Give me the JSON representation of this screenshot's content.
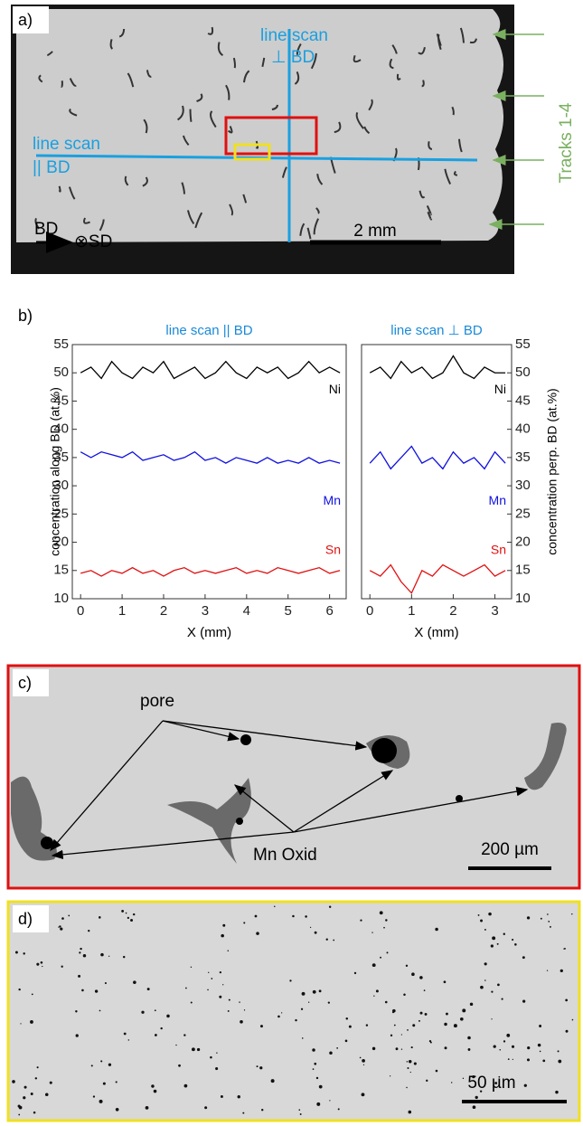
{
  "panels": {
    "a": {
      "label": "a)",
      "scan_perp": [
        "line scan",
        "⊥ BD"
      ],
      "scan_par": [
        "line scan",
        "|| BD"
      ],
      "scale_bar": "2 mm",
      "bd": "BD",
      "sd": "⊗SD",
      "tracks": "Tracks 1-4"
    },
    "b": {
      "label": "b)"
    },
    "c": {
      "label": "c)",
      "pore": "pore",
      "oxide": "Mn Oxid",
      "scale_bar": "200 µm"
    },
    "d": {
      "label": "d)",
      "scale_bar": "50 µm"
    }
  },
  "chart_data": [
    {
      "type": "line",
      "title": "line scan || BD",
      "x_label": "X (mm)",
      "y_label": "concentration along BD (at.%)",
      "xlim": [
        -0.2,
        6.4
      ],
      "xticks": [
        0,
        1,
        2,
        3,
        4,
        5,
        6
      ],
      "ylim": [
        10,
        55
      ],
      "yticks": [
        10,
        15,
        20,
        25,
        30,
        35,
        40,
        45,
        50,
        55
      ],
      "x": [
        0,
        0.25,
        0.5,
        0.75,
        1,
        1.25,
        1.5,
        1.75,
        2,
        2.25,
        2.5,
        2.75,
        3,
        3.25,
        3.5,
        3.75,
        4,
        4.25,
        4.5,
        4.75,
        5,
        5.25,
        5.5,
        5.75,
        6,
        6.25
      ],
      "series": [
        {
          "name": "Ni",
          "color": "#000000",
          "values": [
            50,
            51,
            49,
            52,
            50,
            49,
            51,
            50,
            52,
            49,
            50,
            51,
            49,
            50,
            52,
            50,
            49,
            51,
            50,
            51,
            49,
            50,
            52,
            50,
            51,
            50
          ]
        },
        {
          "name": "Mn",
          "color": "#1010e0",
          "values": [
            36,
            35,
            36,
            35.5,
            35,
            36,
            34.5,
            35,
            35.5,
            34.5,
            35,
            36,
            34.5,
            35,
            34,
            35,
            34.5,
            34,
            35,
            34,
            34.5,
            34,
            35,
            34,
            34.5,
            34
          ]
        },
        {
          "name": "Sn",
          "color": "#e01010",
          "values": [
            14.5,
            15,
            14,
            15,
            14.5,
            15.5,
            14.5,
            15,
            14,
            15,
            15.5,
            14.5,
            15,
            14.5,
            15,
            15.5,
            14.5,
            15,
            14.5,
            15.5,
            15,
            14.5,
            15,
            15.5,
            14.5,
            15
          ]
        }
      ]
    },
    {
      "type": "line",
      "title": "line scan ⊥ BD",
      "x_label": "X (mm)",
      "y_label": "concentration perp. BD (at.%)",
      "xlim": [
        -0.2,
        3.4
      ],
      "xticks": [
        0,
        1,
        2,
        3
      ],
      "ylim": [
        10,
        55
      ],
      "yticks": [
        10,
        15,
        20,
        25,
        30,
        35,
        40,
        45,
        50,
        55
      ],
      "x": [
        0,
        0.25,
        0.5,
        0.75,
        1,
        1.25,
        1.5,
        1.75,
        2,
        2.25,
        2.5,
        2.75,
        3,
        3.25
      ],
      "series": [
        {
          "name": "Ni",
          "color": "#000000",
          "values": [
            50,
            51,
            49,
            52,
            50,
            51,
            49,
            50,
            53,
            50,
            49,
            51,
            50,
            50
          ]
        },
        {
          "name": "Mn",
          "color": "#1010e0",
          "values": [
            34,
            36,
            33,
            35,
            37,
            34,
            35,
            33,
            36,
            34,
            35,
            33,
            36,
            34
          ]
        },
        {
          "name": "Sn",
          "color": "#e01010",
          "values": [
            15,
            14,
            16,
            13,
            11,
            15,
            14,
            16,
            15,
            14,
            15,
            16,
            14,
            15
          ]
        }
      ]
    }
  ]
}
